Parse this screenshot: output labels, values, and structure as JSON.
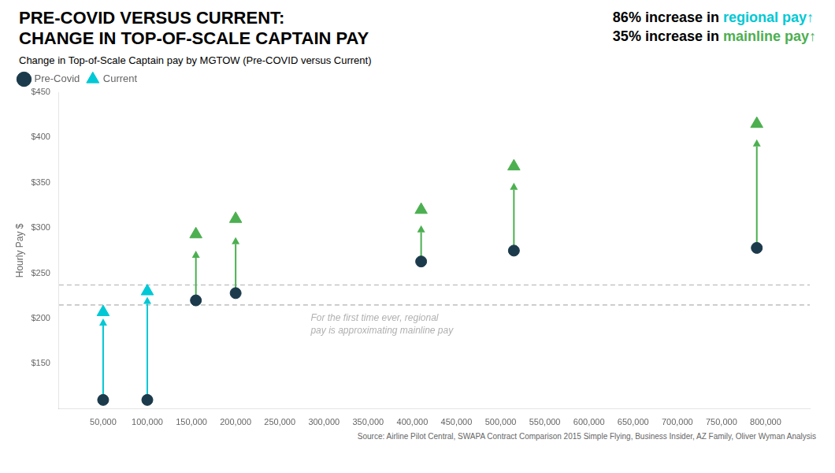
{
  "chart_data": {
    "type": "scatter",
    "title": [
      "PRE-COVID VERSUS CURRENT:",
      "CHANGE IN TOP-OF-SCALE CAPTAIN PAY"
    ],
    "subtitle": "Change in Top-of-Scale Captain pay by MGTOW (Pre-COVID versus Current)",
    "y_label": "Hourly Pay $",
    "source": "Source: Airline Pilot Central, SWAPA Contract Comparison 2015 Simple Flying, Business Insider, AZ Family, Oliver Wyman Analysis",
    "xlim": [
      0,
      850000
    ],
    "ylim": [
      100,
      450
    ],
    "xticks": [
      {
        "value": 50000,
        "label": "50,000"
      },
      {
        "value": 100000,
        "label": "100,000"
      },
      {
        "value": 150000,
        "label": "150,000"
      },
      {
        "value": 200000,
        "label": "200,000"
      },
      {
        "value": 250000,
        "label": "250,000"
      },
      {
        "value": 300000,
        "label": "300,000"
      },
      {
        "value": 350000,
        "label": "350,000"
      },
      {
        "value": 400000,
        "label": "400,000"
      },
      {
        "value": 450000,
        "label": "450,000"
      },
      {
        "value": 500000,
        "label": "500,000"
      },
      {
        "value": 550000,
        "label": "550,000"
      },
      {
        "value": 600000,
        "label": "600,000"
      },
      {
        "value": 650000,
        "label": "650,000"
      },
      {
        "value": 700000,
        "label": "700,000"
      },
      {
        "value": 750000,
        "label": "750,000"
      },
      {
        "value": 800000,
        "label": "800,000"
      }
    ],
    "yticks": [
      {
        "value": 150,
        "label": "$150"
      },
      {
        "value": 200,
        "label": "$200"
      },
      {
        "value": 250,
        "label": "$250"
      },
      {
        "value": 300,
        "label": "$300"
      },
      {
        "value": 350,
        "label": "$350"
      },
      {
        "value": 400,
        "label": "$400"
      },
      {
        "value": 450,
        "label": "$450"
      }
    ],
    "grid": false,
    "legend": "top-left",
    "series": [
      {
        "name": "Pre-Covid",
        "color": "#1b3a4b",
        "marker": "circle",
        "x": [
          50000,
          100000,
          155000,
          200000,
          410000,
          515000,
          790000
        ],
        "values": [
          110,
          110,
          220,
          228,
          263,
          275,
          278
        ]
      },
      {
        "name": "Current",
        "color": "#00c8d4",
        "marker": "triangle",
        "colors": [
          "#00c8d4",
          "#00c8d4",
          "#4caf50",
          "#4caf50",
          "#4caf50",
          "#4caf50",
          "#4caf50"
        ],
        "x": [
          50000,
          100000,
          155000,
          200000,
          410000,
          515000,
          790000
        ],
        "values": [
          207,
          230,
          293,
          310,
          320,
          368,
          415
        ]
      }
    ],
    "arrows": [
      {
        "x": 50000,
        "from": 110,
        "to": 200,
        "color": "#00c8d4"
      },
      {
        "x": 100000,
        "from": 110,
        "to": 224,
        "color": "#00c8d4"
      },
      {
        "x": 155000,
        "from": 220,
        "to": 275,
        "color": "#4caf50"
      },
      {
        "x": 200000,
        "from": 228,
        "to": 290,
        "color": "#4caf50"
      },
      {
        "x": 410000,
        "from": 263,
        "to": 303,
        "color": "#4caf50"
      },
      {
        "x": 515000,
        "from": 275,
        "to": 350,
        "color": "#4caf50"
      },
      {
        "x": 790000,
        "from": 278,
        "to": 398,
        "color": "#4caf50"
      }
    ],
    "reference_lines": [
      {
        "y": 215,
        "color": "#b0b0b0",
        "line_style": "dashed"
      },
      {
        "y": 237,
        "color": "#b0b0b0",
        "line_style": "dashed"
      }
    ],
    "annotation": {
      "text": "For the first time ever, regional\npay is approximating mainline pay",
      "x": 285000,
      "y": 207,
      "color": "#b0b0b0"
    },
    "stats": [
      {
        "pct": "86%",
        "text": " increase in ",
        "highlight": "regional pay↑",
        "color": "#00c8d4"
      },
      {
        "pct": "35%",
        "text": " increase in ",
        "highlight": "mainline pay↑",
        "color": "#4caf50"
      }
    ]
  }
}
